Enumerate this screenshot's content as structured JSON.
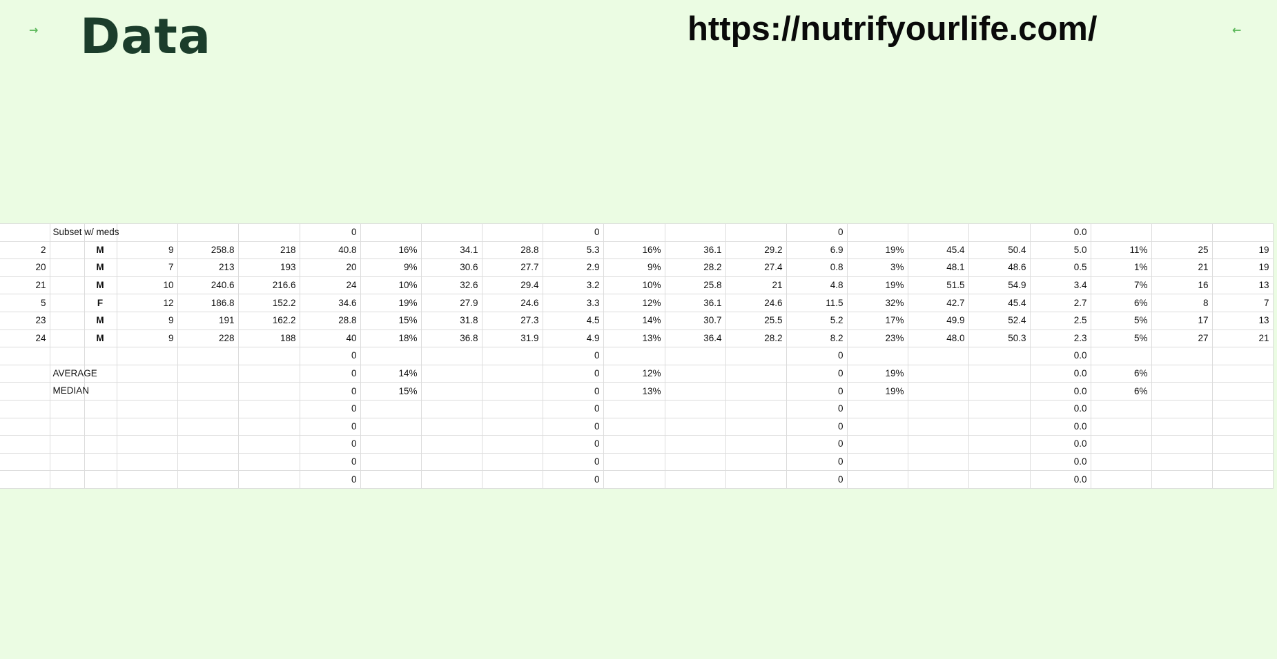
{
  "nav": {
    "prev_icon": "→",
    "next_icon": "←"
  },
  "slide": {
    "title": "Data",
    "url": "https://nutrifyourlife.com/"
  },
  "sheet": {
    "rows": [
      [
        "",
        "Subset w/ meds",
        "",
        "",
        "",
        "",
        "0",
        "",
        "",
        "",
        "0",
        "",
        "",
        "",
        "0",
        "",
        "",
        "",
        "0.0",
        "",
        "",
        ""
      ],
      [
        "2",
        "",
        "M",
        "9",
        "258.8",
        "218",
        "40.8",
        "16%",
        "34.1",
        "28.8",
        "5.3",
        "16%",
        "36.1",
        "29.2",
        "6.9",
        "19%",
        "45.4",
        "50.4",
        "5.0",
        "11%",
        "25",
        "19"
      ],
      [
        "20",
        "",
        "M",
        "7",
        "213",
        "193",
        "20",
        "9%",
        "30.6",
        "27.7",
        "2.9",
        "9%",
        "28.2",
        "27.4",
        "0.8",
        "3%",
        "48.1",
        "48.6",
        "0.5",
        "1%",
        "21",
        "19"
      ],
      [
        "21",
        "",
        "M",
        "10",
        "240.6",
        "216.6",
        "24",
        "10%",
        "32.6",
        "29.4",
        "3.2",
        "10%",
        "25.8",
        "21",
        "4.8",
        "19%",
        "51.5",
        "54.9",
        "3.4",
        "7%",
        "16",
        "13"
      ],
      [
        "5",
        "",
        "F",
        "12",
        "186.8",
        "152.2",
        "34.6",
        "19%",
        "27.9",
        "24.6",
        "3.3",
        "12%",
        "36.1",
        "24.6",
        "11.5",
        "32%",
        "42.7",
        "45.4",
        "2.7",
        "6%",
        "8",
        "7"
      ],
      [
        "23",
        "",
        "M",
        "9",
        "191",
        "162.2",
        "28.8",
        "15%",
        "31.8",
        "27.3",
        "4.5",
        "14%",
        "30.7",
        "25.5",
        "5.2",
        "17%",
        "49.9",
        "52.4",
        "2.5",
        "5%",
        "17",
        "13"
      ],
      [
        "24",
        "",
        "M",
        "9",
        "228",
        "188",
        "40",
        "18%",
        "36.8",
        "31.9",
        "4.9",
        "13%",
        "36.4",
        "28.2",
        "8.2",
        "23%",
        "48.0",
        "50.3",
        "2.3",
        "5%",
        "27",
        "21"
      ],
      [
        "",
        "",
        "",
        "",
        "",
        "",
        "0",
        "",
        "",
        "",
        "0",
        "",
        "",
        "",
        "0",
        "",
        "",
        "",
        "0.0",
        "",
        "",
        ""
      ],
      [
        "",
        "AVERAGE",
        "",
        "",
        "",
        "",
        "0",
        "14%",
        "",
        "",
        "0",
        "12%",
        "",
        "",
        "0",
        "19%",
        "",
        "",
        "0.0",
        "6%",
        "",
        ""
      ],
      [
        "",
        "MEDIAN",
        "",
        "",
        "",
        "",
        "0",
        "15%",
        "",
        "",
        "0",
        "13%",
        "",
        "",
        "0",
        "19%",
        "",
        "",
        "0.0",
        "6%",
        "",
        ""
      ],
      [
        "",
        "",
        "",
        "",
        "",
        "",
        "0",
        "",
        "",
        "",
        "0",
        "",
        "",
        "",
        "0",
        "",
        "",
        "",
        "0.0",
        "",
        "",
        ""
      ],
      [
        "",
        "",
        "",
        "",
        "",
        "",
        "0",
        "",
        "",
        "",
        "0",
        "",
        "",
        "",
        "0",
        "",
        "",
        "",
        "0.0",
        "",
        "",
        ""
      ],
      [
        "",
        "",
        "",
        "",
        "",
        "",
        "0",
        "",
        "",
        "",
        "0",
        "",
        "",
        "",
        "0",
        "",
        "",
        "",
        "0.0",
        "",
        "",
        ""
      ],
      [
        "",
        "",
        "",
        "",
        "",
        "",
        "0",
        "",
        "",
        "",
        "0",
        "",
        "",
        "",
        "0",
        "",
        "",
        "",
        "0.0",
        "",
        "",
        ""
      ],
      [
        "",
        "",
        "",
        "",
        "",
        "",
        "0",
        "",
        "",
        "",
        "0",
        "",
        "",
        "",
        "0",
        "",
        "",
        "",
        "0.0",
        "",
        "",
        ""
      ]
    ]
  }
}
